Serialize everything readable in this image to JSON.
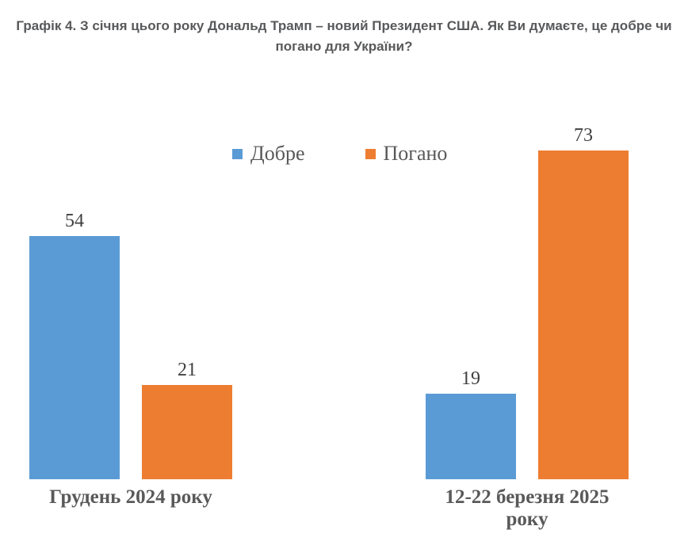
{
  "chart_data": {
    "type": "bar",
    "title": "Графік 4. З січня цього року Дональд Трамп – новий Президент США. Як Ви думаєте, це добре чи погано для України?",
    "categories": [
      "Грудень 2024 року",
      "12-22 березня 2025 року"
    ],
    "series": [
      {
        "name": "Добре",
        "color": "#5B9BD5",
        "values": [
          54,
          19
        ]
      },
      {
        "name": "Погано",
        "color": "#ED7D31",
        "values": [
          21,
          73
        ]
      }
    ],
    "ylim": [
      0,
      80
    ],
    "grid": false,
    "value_axis_visible": false,
    "category_axis_line_visible": false,
    "data_labels_shown": true,
    "legend_position": "top",
    "text_colors": {
      "title": "#58595B",
      "category_labels": "#595959",
      "legend_labels": "#595959",
      "value_labels": "#404040"
    },
    "background": "#FFFFFF"
  }
}
